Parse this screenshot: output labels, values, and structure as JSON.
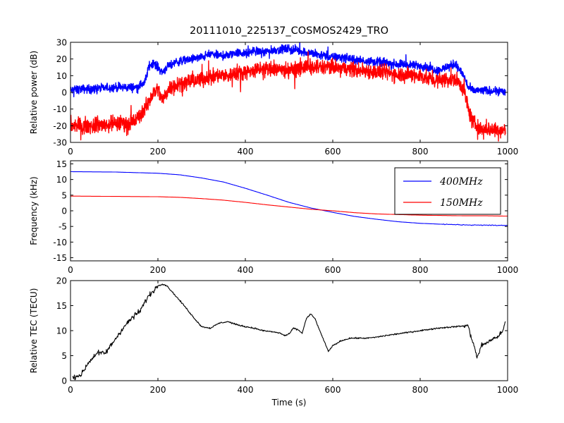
{
  "figure": {
    "title": "20111010_225137_COSMOS2429_TRO"
  },
  "chart_data": [
    {
      "type": "line",
      "id": "power",
      "xlabel": "",
      "ylabel": "Relative power (dB)",
      "xlim": [
        0,
        1000
      ],
      "ylim": [
        -30,
        30
      ],
      "xticks": [
        0,
        200,
        400,
        600,
        800,
        1000
      ],
      "yticks": [
        -30,
        -20,
        -10,
        0,
        10,
        20,
        30
      ],
      "grid": false,
      "noisy": true,
      "series": [
        {
          "name": "",
          "color": "#0000ff",
          "noise": 2.2,
          "x": [
            0,
            20,
            50,
            100,
            150,
            170,
            180,
            190,
            200,
            210,
            220,
            240,
            260,
            280,
            300,
            320,
            340,
            360,
            380,
            400,
            420,
            440,
            460,
            480,
            500,
            520,
            540,
            560,
            580,
            600,
            620,
            640,
            660,
            680,
            700,
            720,
            740,
            760,
            780,
            800,
            820,
            840,
            860,
            880,
            900,
            910,
            920,
            940,
            960,
            980,
            995
          ],
          "y": [
            1,
            2,
            2,
            3,
            3,
            6,
            16,
            18,
            15,
            12,
            15,
            18,
            19,
            20,
            21,
            23,
            22,
            22,
            24,
            23,
            25,
            24,
            25,
            26,
            26,
            25,
            24,
            23,
            22,
            21,
            21,
            20,
            19,
            19,
            18,
            18,
            17,
            17,
            16,
            16,
            15,
            13,
            15,
            17,
            10,
            3,
            1,
            1,
            1,
            1,
            0
          ]
        },
        {
          "name": "",
          "color": "#ff0000",
          "noise": 4.0,
          "x": [
            0,
            20,
            50,
            100,
            150,
            170,
            180,
            190,
            200,
            210,
            220,
            230,
            240,
            260,
            280,
            300,
            320,
            340,
            360,
            380,
            400,
            420,
            440,
            460,
            480,
            500,
            520,
            540,
            560,
            580,
            600,
            620,
            640,
            660,
            680,
            700,
            720,
            740,
            760,
            780,
            800,
            820,
            840,
            860,
            880,
            900,
            910,
            920,
            940,
            960,
            980,
            995
          ],
          "y": [
            -20,
            -20,
            -20,
            -19,
            -17,
            -10,
            -5,
            0,
            2,
            -5,
            0,
            4,
            5,
            6,
            7,
            8,
            9,
            10,
            10,
            12,
            12,
            13,
            14,
            14,
            14,
            13,
            14,
            15,
            15,
            15,
            15,
            14,
            14,
            13,
            13,
            12,
            12,
            11,
            11,
            10,
            10,
            8,
            7,
            8,
            8,
            2,
            -10,
            -18,
            -22,
            -22,
            -22,
            -23
          ]
        }
      ]
    },
    {
      "type": "line",
      "id": "frequency",
      "xlabel": "",
      "ylabel": "Frequency (kHz)",
      "xlim": [
        0,
        1000
      ],
      "ylim": [
        -16,
        16
      ],
      "xticks": [
        0,
        200,
        400,
        600,
        800,
        1000
      ],
      "yticks": [
        -15,
        -10,
        -5,
        0,
        5,
        10,
        15
      ],
      "grid": false,
      "legend_position": "upper-right",
      "series": [
        {
          "name": "$400MHz$",
          "color": "#0000ff",
          "x": [
            0,
            100,
            200,
            250,
            300,
            350,
            400,
            450,
            500,
            550,
            600,
            650,
            700,
            750,
            800,
            850,
            900,
            950,
            1000
          ],
          "y": [
            12.5,
            12.4,
            12.0,
            11.5,
            10.5,
            9.2,
            7.2,
            5.0,
            2.7,
            0.9,
            -0.5,
            -1.8,
            -2.7,
            -3.5,
            -4.0,
            -4.3,
            -4.5,
            -4.6,
            -4.7
          ]
        },
        {
          "name": "$150MHz$",
          "color": "#ff0000",
          "x": [
            0,
            100,
            200,
            250,
            300,
            350,
            400,
            450,
            500,
            550,
            600,
            650,
            700,
            750,
            800,
            850,
            900,
            950,
            1000
          ],
          "y": [
            4.7,
            4.6,
            4.5,
            4.3,
            3.9,
            3.4,
            2.7,
            1.9,
            1.2,
            0.5,
            0.0,
            -0.6,
            -1.0,
            -1.2,
            -1.4,
            -1.5,
            -1.6,
            -1.6,
            -1.7
          ]
        }
      ]
    },
    {
      "type": "line",
      "id": "tec",
      "xlabel": "Time (s)",
      "ylabel": "Relative TEC (TECU)",
      "xlim": [
        0,
        1000
      ],
      "ylim": [
        0,
        20
      ],
      "xticks": [
        0,
        200,
        400,
        600,
        800,
        1000
      ],
      "yticks": [
        0,
        5,
        10,
        15,
        20
      ],
      "grid": false,
      "series": [
        {
          "name": "",
          "color": "#000000",
          "x": [
            5,
            15,
            25,
            40,
            60,
            80,
            100,
            120,
            140,
            160,
            175,
            190,
            200,
            210,
            220,
            240,
            260,
            280,
            300,
            320,
            340,
            360,
            380,
            400,
            420,
            440,
            460,
            480,
            490,
            500,
            510,
            520,
            530,
            540,
            550,
            560,
            570,
            580,
            590,
            600,
            620,
            640,
            660,
            680,
            700,
            720,
            760,
            800,
            840,
            880,
            910,
            915,
            920,
            925,
            930,
            940,
            960,
            980,
            990,
            995
          ],
          "y": [
            0.5,
            1.0,
            1.2,
            3.5,
            5.5,
            5.5,
            8.0,
            10.5,
            12.5,
            14.0,
            16.5,
            18.0,
            19.0,
            19.3,
            19.0,
            17.0,
            15.0,
            12.8,
            10.8,
            10.5,
            11.5,
            11.8,
            11.2,
            10.8,
            10.5,
            10.0,
            9.8,
            9.5,
            9.0,
            9.3,
            10.5,
            10.2,
            9.5,
            12.5,
            13.3,
            12.3,
            10.0,
            8.0,
            5.8,
            7.0,
            8.0,
            8.5,
            8.5,
            8.5,
            8.7,
            9.0,
            9.5,
            10.0,
            10.5,
            10.8,
            11.0,
            9.0,
            8.0,
            6.5,
            4.5,
            7.0,
            8.0,
            9.0,
            10.0,
            12.0
          ]
        }
      ]
    }
  ]
}
